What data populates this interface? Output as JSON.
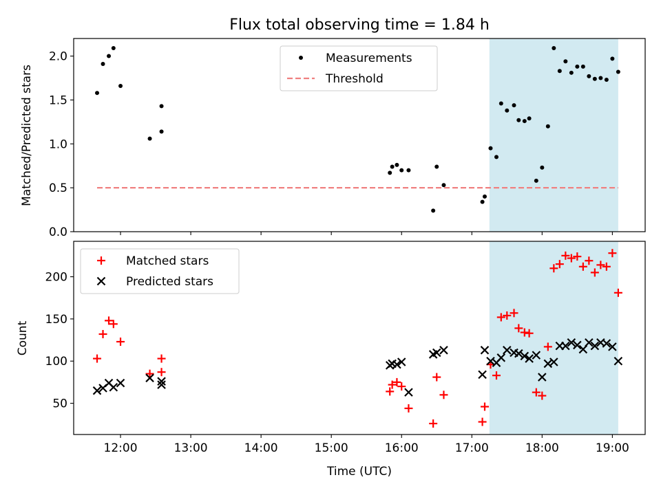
{
  "chart_data": [
    {
      "type": "scatter",
      "title": "Flux total observing time = 1.84 h",
      "xlabel": "",
      "ylabel": "Matched/Predicted stars",
      "xlim": [
        "11:20",
        "19:28"
      ],
      "ylim": [
        0,
        2.2
      ],
      "x_ticks": [
        "12:00",
        "13:00",
        "14:00",
        "15:00",
        "16:00",
        "17:00",
        "18:00",
        "19:00"
      ],
      "x_ticklabels_visible": false,
      "y_ticks": [
        0.0,
        0.5,
        1.0,
        1.5,
        2.0
      ],
      "y_ticklabels": [
        "0.0",
        "0.5",
        "1.0",
        "1.5",
        "2.0"
      ],
      "legend": {
        "position": "top-center",
        "entries": [
          "Measurements",
          "Threshold"
        ]
      },
      "shaded_region": {
        "x_start": "17:15",
        "x_end": "19:05",
        "color": "#add8e6"
      },
      "series": [
        {
          "name": "Measurements",
          "marker": "dot",
          "color": "#000000",
          "points": [
            [
              "11:40",
              1.58
            ],
            [
              "11:45",
              1.91
            ],
            [
              "11:50",
              2.0
            ],
            [
              "11:54",
              2.09
            ],
            [
              "12:00",
              1.66
            ],
            [
              "12:25",
              1.06
            ],
            [
              "12:35",
              1.14
            ],
            [
              "12:35",
              1.43
            ],
            [
              "15:50",
              0.67
            ],
            [
              "15:52",
              0.74
            ],
            [
              "15:56",
              0.76
            ],
            [
              "16:00",
              0.7
            ],
            [
              "16:06",
              0.7
            ],
            [
              "16:27",
              0.24
            ],
            [
              "16:30",
              0.74
            ],
            [
              "16:36",
              0.53
            ],
            [
              "17:09",
              0.34
            ],
            [
              "17:11",
              0.4
            ],
            [
              "17:16",
              0.95
            ],
            [
              "17:21",
              0.85
            ],
            [
              "17:25",
              1.46
            ],
            [
              "17:30",
              1.38
            ],
            [
              "17:36",
              1.44
            ],
            [
              "17:40",
              1.27
            ],
            [
              "17:45",
              1.26
            ],
            [
              "17:49",
              1.29
            ],
            [
              "17:55",
              0.58
            ],
            [
              "18:00",
              0.73
            ],
            [
              "18:05",
              1.2
            ],
            [
              "18:10",
              2.09
            ],
            [
              "18:15",
              1.83
            ],
            [
              "18:20",
              1.94
            ],
            [
              "18:25",
              1.81
            ],
            [
              "18:30",
              1.88
            ],
            [
              "18:35",
              1.88
            ],
            [
              "18:40",
              1.77
            ],
            [
              "18:45",
              1.74
            ],
            [
              "18:50",
              1.75
            ],
            [
              "18:55",
              1.73
            ],
            [
              "19:00",
              1.97
            ],
            [
              "19:05",
              1.82
            ]
          ]
        },
        {
          "name": "Threshold",
          "marker": "dashed-line",
          "color": "#f08080",
          "points": [
            [
              "11:40",
              0.5
            ],
            [
              "19:05",
              0.5
            ]
          ]
        }
      ]
    },
    {
      "type": "scatter",
      "title": "",
      "xlabel": "Time (UTC)",
      "ylabel": "Count",
      "xlim": [
        "11:20",
        "19:28"
      ],
      "ylim": [
        13,
        242
      ],
      "x_ticks": [
        "12:00",
        "13:00",
        "14:00",
        "15:00",
        "16:00",
        "17:00",
        "18:00",
        "19:00"
      ],
      "x_ticklabels": [
        "12:00",
        "13:00",
        "14:00",
        "15:00",
        "16:00",
        "17:00",
        "18:00",
        "19:00"
      ],
      "y_ticks": [
        50,
        100,
        150,
        200
      ],
      "y_ticklabels": [
        "50",
        "100",
        "150",
        "200"
      ],
      "legend": {
        "position": "top-left",
        "entries": [
          "Matched stars",
          "Predicted stars"
        ]
      },
      "shaded_region": {
        "x_start": "17:15",
        "x_end": "19:05",
        "color": "#add8e6"
      },
      "series": [
        {
          "name": "Matched stars",
          "marker": "plus",
          "color": "#ff0000",
          "points": [
            [
              "11:40",
              103
            ],
            [
              "11:45",
              132
            ],
            [
              "11:50",
              148
            ],
            [
              "11:54",
              144
            ],
            [
              "12:00",
              123
            ],
            [
              "12:25",
              85
            ],
            [
              "12:35",
              87
            ],
            [
              "12:35",
              103
            ],
            [
              "15:50",
              64
            ],
            [
              "15:52",
              72
            ],
            [
              "15:56",
              75
            ],
            [
              "16:00",
              70
            ],
            [
              "16:06",
              44
            ],
            [
              "16:27",
              26
            ],
            [
              "16:30",
              81
            ],
            [
              "16:36",
              60
            ],
            [
              "17:09",
              28
            ],
            [
              "17:11",
              46
            ],
            [
              "17:16",
              96
            ],
            [
              "17:21",
              83
            ],
            [
              "17:25",
              152
            ],
            [
              "17:30",
              154
            ],
            [
              "17:36",
              157
            ],
            [
              "17:40",
              139
            ],
            [
              "17:45",
              134
            ],
            [
              "17:49",
              133
            ],
            [
              "17:55",
              63
            ],
            [
              "18:00",
              59
            ],
            [
              "18:05",
              117
            ],
            [
              "18:10",
              210
            ],
            [
              "18:15",
              215
            ],
            [
              "18:20",
              225
            ],
            [
              "18:25",
              222
            ],
            [
              "18:30",
              224
            ],
            [
              "18:35",
              212
            ],
            [
              "18:40",
              219
            ],
            [
              "18:45",
              205
            ],
            [
              "18:50",
              214
            ],
            [
              "18:55",
              212
            ],
            [
              "19:00",
              228
            ],
            [
              "19:05",
              181
            ]
          ]
        },
        {
          "name": "Predicted stars",
          "marker": "x",
          "color": "#000000",
          "points": [
            [
              "11:40",
              65
            ],
            [
              "11:45",
              68
            ],
            [
              "11:50",
              74
            ],
            [
              "11:54",
              69
            ],
            [
              "12:00",
              74
            ],
            [
              "12:25",
              80
            ],
            [
              "12:35",
              76
            ],
            [
              "12:35",
              72
            ],
            [
              "15:50",
              95
            ],
            [
              "15:52",
              97
            ],
            [
              "15:56",
              96
            ],
            [
              "16:00",
              99
            ],
            [
              "16:06",
              63
            ],
            [
              "16:27",
              108
            ],
            [
              "16:30",
              110
            ],
            [
              "16:36",
              113
            ],
            [
              "17:09",
              84
            ],
            [
              "17:11",
              113
            ],
            [
              "17:16",
              100
            ],
            [
              "17:21",
              98
            ],
            [
              "17:25",
              104
            ],
            [
              "17:30",
              113
            ],
            [
              "17:36",
              110
            ],
            [
              "17:40",
              109
            ],
            [
              "17:45",
              106
            ],
            [
              "17:49",
              103
            ],
            [
              "17:55",
              107
            ],
            [
              "18:00",
              81
            ],
            [
              "18:05",
              97
            ],
            [
              "18:10",
              99
            ],
            [
              "18:15",
              118
            ],
            [
              "18:20",
              118
            ],
            [
              "18:25",
              122
            ],
            [
              "18:30",
              119
            ],
            [
              "18:35",
              114
            ],
            [
              "18:40",
              122
            ],
            [
              "18:45",
              118
            ],
            [
              "18:50",
              122
            ],
            [
              "18:55",
              121
            ],
            [
              "19:00",
              117
            ],
            [
              "19:05",
              100
            ]
          ]
        }
      ]
    }
  ]
}
